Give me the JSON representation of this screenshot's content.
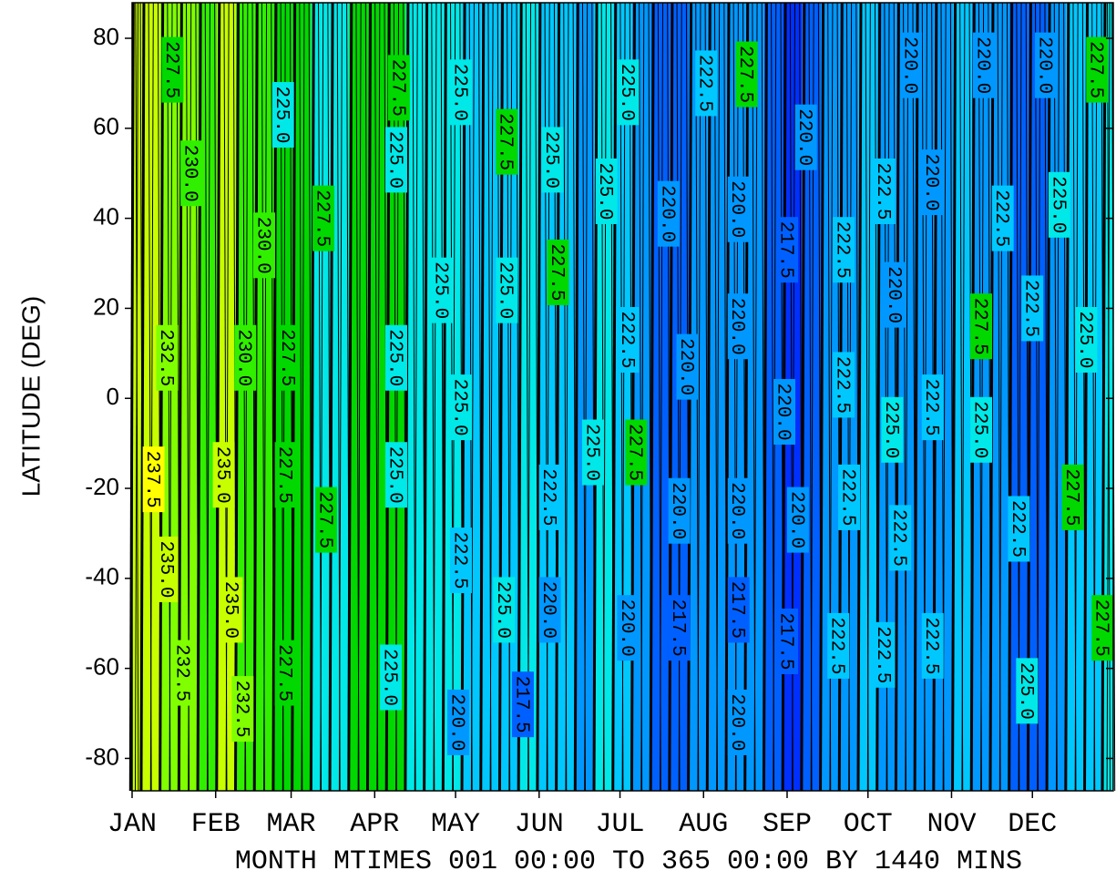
{
  "chart_data": {
    "type": "contour",
    "ylabel": "LATITUDE (DEG)",
    "xlabel": "MONTH MTIMES 001 00:00 TO 365 00:00 BY 1440 MINS",
    "xlim": [
      1,
      365
    ],
    "xticks": [
      {
        "value": 1,
        "label": "JAN"
      },
      {
        "value": 32,
        "label": "FEB"
      },
      {
        "value": 60,
        "label": "MAR"
      },
      {
        "value": 91,
        "label": "APR"
      },
      {
        "value": 121,
        "label": "MAY"
      },
      {
        "value": 152,
        "label": "JUN"
      },
      {
        "value": 182,
        "label": "JUL"
      },
      {
        "value": 213,
        "label": "AUG"
      },
      {
        "value": 244,
        "label": "SEP"
      },
      {
        "value": 274,
        "label": "OCT"
      },
      {
        "value": 305,
        "label": "NOV"
      },
      {
        "value": 335,
        "label": "DEC"
      }
    ],
    "ylim": [
      -87.2,
      87.9
    ],
    "yticks": [
      -80,
      -60,
      -40,
      -20,
      0,
      20,
      40,
      60,
      80
    ],
    "levels": [
      212.5,
      215,
      217.5,
      220,
      222.5,
      225,
      227.5,
      230,
      232.5,
      235,
      237.5,
      240
    ],
    "level_colors": [
      "#0018e0",
      "#0030ff",
      "#0060ff",
      "#0098ff",
      "#00c8ff",
      "#00e8e8",
      "#00d800",
      "#30f000",
      "#80ff00",
      "#c8ff00",
      "#ffff00"
    ],
    "field": {
      "x": [
        1,
        8,
        15,
        22,
        29,
        36,
        43,
        50,
        57,
        64,
        71,
        78,
        85,
        92,
        99,
        106,
        113,
        120,
        127,
        134,
        141,
        148,
        155,
        162,
        169,
        176,
        183,
        190,
        197,
        204,
        211,
        218,
        225,
        232,
        239,
        246,
        253,
        260,
        267,
        274,
        281,
        288,
        295,
        302,
        309,
        316,
        323,
        330,
        337,
        344,
        351,
        358,
        365
      ],
      "values": [
        236,
        235,
        233,
        234,
        232,
        235,
        231,
        230,
        229,
        229,
        227,
        226,
        228,
        228.5,
        228,
        227,
        226,
        225,
        224,
        223.5,
        223,
        225,
        222.5,
        224,
        221,
        226,
        223,
        222,
        219,
        218,
        221,
        222,
        221,
        220,
        219,
        216,
        219,
        221,
        222,
        222.5,
        221,
        220,
        221,
        222,
        223,
        222,
        221,
        219,
        218,
        220,
        223,
        224,
        226
      ]
    },
    "contour_labels": {
      "x": [
        16,
        23,
        14,
        9,
        14,
        20,
        35,
        38,
        42,
        43,
        50,
        57,
        59,
        58,
        58,
        72,
        73,
        100,
        99,
        99,
        99,
        97,
        116,
        123,
        123,
        122,
        123,
        140,
        140,
        139,
        157,
        159,
        156,
        156,
        146,
        177,
        172,
        185,
        185,
        188,
        185,
        200,
        204,
        204,
        214,
        207,
        226,
        226,
        226,
        226,
        226,
        229,
        243,
        248,
        244,
        251,
        244,
        265,
        265,
        267,
        263,
        280,
        280,
        284,
        283,
        286,
        290,
        298,
        298,
        298,
        317,
        324,
        316,
        316,
        330,
        333,
        335,
        340,
        345,
        350,
        355,
        359,
        361
      ],
      "y": [
        73,
        50,
        9,
        -18,
        -38,
        -61,
        -17,
        -47,
        -69,
        9,
        34,
        63,
        9,
        -17,
        -61,
        40,
        -27,
        69,
        53,
        9,
        -17,
        -62,
        24,
        -2,
        -36,
        -72,
        68,
        57,
        24,
        -47,
        53,
        28,
        -22,
        -47,
        -68,
        46,
        -12,
        68,
        13,
        -12,
        -51,
        41,
        -25,
        -51,
        70,
        7,
        -72,
        -25,
        -47,
        16,
        42,
        72,
        -3,
        -27,
        33,
        58,
        -54,
        33,
        3,
        -22,
        -55,
        -57,
        46,
        23,
        -7,
        -31,
        74,
        48,
        -2,
        -55,
        74,
        40,
        16,
        -7,
        -29,
        -65,
        20,
        74,
        43,
        -22,
        13,
        73,
        -51
      ],
      "values": [
        227.5,
        230,
        232.5,
        237.5,
        235,
        232.5,
        235,
        235,
        232.5,
        230,
        230,
        225,
        227.5,
        227.5,
        227.5,
        227.5,
        227.5,
        227.5,
        225,
        225,
        225,
        225,
        225,
        225,
        222.5,
        220,
        225,
        227.5,
        225,
        225,
        225,
        227.5,
        222.5,
        220,
        217.5,
        225,
        225,
        225,
        222.5,
        227.5,
        220,
        220,
        220,
        217.5,
        222.5,
        220,
        220,
        220,
        217.5,
        220,
        220,
        227.5,
        220,
        220,
        217.5,
        220,
        217.5,
        222.5,
        222.5,
        222.5,
        222.5,
        222.5,
        222.5,
        220,
        225,
        222.5,
        220,
        220,
        222.5,
        222.5,
        220,
        222.5,
        227.5,
        225,
        222.5,
        225,
        222.5,
        220,
        225,
        227.5,
        225,
        227.5,
        227.5
      ],
      "value_labels": [
        "227.5",
        "230.0",
        "232.5",
        "237.5",
        "235.0",
        "232.5",
        "235.0",
        "235.0",
        "232.5",
        "230.0",
        "230.0",
        "225.0",
        "227.5",
        "227.5",
        "227.5",
        "227.5",
        "227.5",
        "227.5",
        "225.0",
        "225.0",
        "225.0",
        "225.0",
        "225.0",
        "225.0",
        "222.5",
        "220.0",
        "225.0",
        "227.5",
        "225.0",
        "225.0",
        "225.0",
        "227.5",
        "222.5",
        "220.0",
        "217.5",
        "225.0",
        "225.0",
        "225.0",
        "222.5",
        "227.5",
        "220.0",
        "220.0",
        "220.0",
        "217.5",
        "222.5",
        "220.0",
        "220.0",
        "220.0",
        "217.5",
        "220.0",
        "220.0",
        "227.5",
        "220.0",
        "220.0",
        "217.5",
        "220.0",
        "217.5",
        "222.5",
        "222.5",
        "222.5",
        "222.5",
        "222.5",
        "222.5",
        "220.0",
        "225.0",
        "222.5",
        "220.0",
        "220.0",
        "222.5",
        "222.5",
        "220.0",
        "222.5",
        "227.5",
        "225.0",
        "222.5",
        "225.0",
        "222.5",
        "220.0",
        "225.0",
        "227.5",
        "225.0",
        "227.5",
        "227.5"
      ]
    }
  }
}
